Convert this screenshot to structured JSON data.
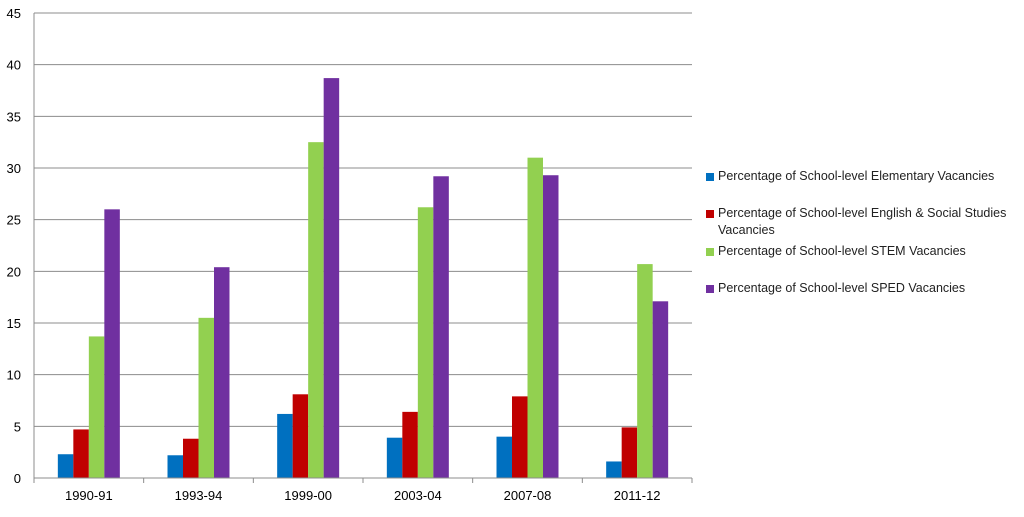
{
  "chart_data": {
    "type": "bar",
    "categories": [
      "1990-91",
      "1993-94",
      "1999-00",
      "2003-04",
      "2007-08",
      "2011-12"
    ],
    "series": [
      {
        "name": "Percentage of School-level Elementary Vacancies",
        "color": "#0070C0",
        "values": [
          2.3,
          2.2,
          6.2,
          3.9,
          4.0,
          1.6
        ]
      },
      {
        "name": "Percentage of School-level English & Social Studies Vacancies",
        "color": "#C00000",
        "values": [
          4.7,
          3.8,
          8.1,
          6.4,
          7.9,
          4.9
        ]
      },
      {
        "name": "Percentage of School-level STEM Vacancies",
        "color": "#92D050",
        "values": [
          13.7,
          15.5,
          32.5,
          26.2,
          31.0,
          20.7
        ]
      },
      {
        "name": "Percentage of School-level SPED Vacancies",
        "color": "#7030A0",
        "values": [
          26.0,
          20.4,
          38.7,
          29.2,
          29.3,
          17.1
        ]
      }
    ],
    "title": "",
    "xlabel": "",
    "ylabel": "",
    "ylim": [
      0,
      45
    ],
    "yticks": [
      "0",
      "5",
      "10",
      "15",
      "20",
      "25",
      "30",
      "35",
      "40",
      "45"
    ],
    "grid": "horizontal",
    "legend_position": "right"
  }
}
